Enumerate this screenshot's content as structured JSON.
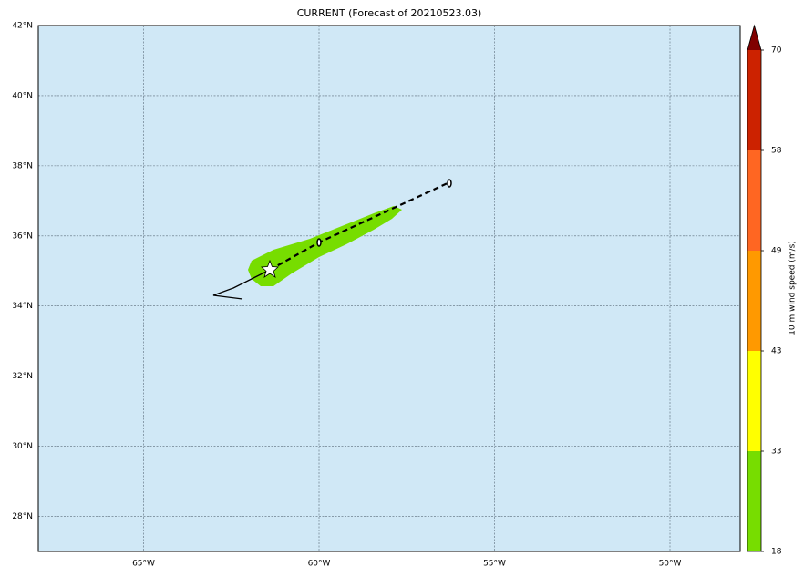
{
  "chart_data": {
    "type": "map",
    "title": "CURRENT (Forecast of 20210523.03)",
    "xlim": [
      -68,
      -48
    ],
    "ylim": [
      27,
      42
    ],
    "xticks": [
      {
        "value": -65,
        "label": "65°W"
      },
      {
        "value": -60,
        "label": "60°W"
      },
      {
        "value": -55,
        "label": "55°W"
      },
      {
        "value": -50,
        "label": "50°W"
      }
    ],
    "yticks": [
      {
        "value": 28,
        "label": "28°N"
      },
      {
        "value": 30,
        "label": "30°N"
      },
      {
        "value": 32,
        "label": "32°N"
      },
      {
        "value": 34,
        "label": "34°N"
      },
      {
        "value": 36,
        "label": "36°N"
      },
      {
        "value": 38,
        "label": "38°N"
      },
      {
        "value": 40,
        "label": "40°N"
      },
      {
        "value": 42,
        "label": "42°N"
      }
    ],
    "grid": true,
    "colorbar": {
      "label": "10 m wind speed (m/s)",
      "ticks": [
        18,
        33,
        43,
        49,
        58,
        70
      ],
      "colors": [
        "#77dd00",
        "#ffff00",
        "#ff9900",
        "#ff6622",
        "#cc2200"
      ],
      "extend_color": "#800000"
    }
  }
}
